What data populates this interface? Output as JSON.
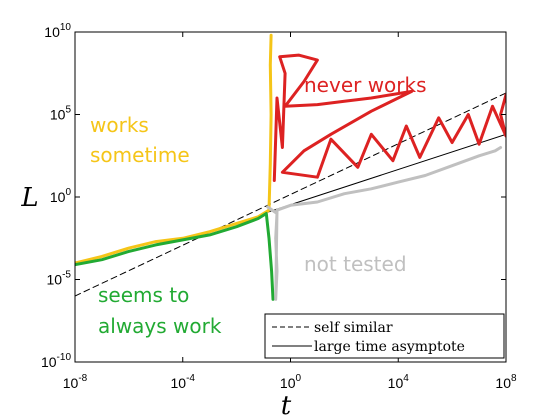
{
  "chart_data": {
    "type": "line",
    "title": "",
    "xlabel": "t",
    "ylabel": "L",
    "xscale": "log",
    "yscale": "log",
    "xlim_exp": [
      -8,
      8
    ],
    "ylim_exp": [
      -10,
      10
    ],
    "x_ticks": [
      {
        "base": "10",
        "exp": "-8",
        "value": -8
      },
      {
        "base": "10",
        "exp": "-4",
        "value": -4
      },
      {
        "base": "10",
        "exp": "0",
        "value": 0
      },
      {
        "base": "10",
        "exp": "4",
        "value": 4
      },
      {
        "base": "10",
        "exp": "8",
        "value": 8
      }
    ],
    "y_ticks": [
      {
        "base": "10",
        "exp": "-10",
        "value": -10
      },
      {
        "base": "10",
        "exp": "-5",
        "value": -5
      },
      {
        "base": "10",
        "exp": "0",
        "value": 0
      },
      {
        "base": "10",
        "exp": "5",
        "value": 5
      },
      {
        "base": "10",
        "exp": "10",
        "value": 10
      }
    ],
    "series": [
      {
        "name": "self similar",
        "style": "dashed",
        "color": "#000000",
        "points": [
          [
            -8,
            -6.0
          ],
          [
            8,
            6.3
          ]
        ]
      },
      {
        "name": "large time asymptote",
        "style": "solid",
        "color": "#000000",
        "points": [
          [
            -1.0,
            -1.0
          ],
          [
            8,
            3.8
          ]
        ]
      },
      {
        "name": "works sometime",
        "style": "hand",
        "color": "#f5c518",
        "points": [
          [
            -8,
            -4.0
          ],
          [
            -7,
            -3.6
          ],
          [
            -6,
            -3.1
          ],
          [
            -5,
            -2.7
          ],
          [
            -4,
            -2.5
          ],
          [
            -3,
            -2.1
          ],
          [
            -2,
            -1.6
          ],
          [
            -1.2,
            -1.2
          ],
          [
            -0.8,
            -0.8
          ],
          [
            -0.75,
            2.0
          ],
          [
            -0.72,
            5.0
          ],
          [
            -0.75,
            8.0
          ],
          [
            -0.72,
            9.8
          ]
        ]
      },
      {
        "name": "seems to always work",
        "style": "hand",
        "color": "#22aa33",
        "points": [
          [
            -8,
            -4.1
          ],
          [
            -7,
            -3.8
          ],
          [
            -6,
            -3.3
          ],
          [
            -5,
            -2.9
          ],
          [
            -4,
            -2.6
          ],
          [
            -3,
            -2.3
          ],
          [
            -2,
            -1.8
          ],
          [
            -1.2,
            -1.3
          ],
          [
            -0.9,
            -1.0
          ],
          [
            -0.8,
            -2.5
          ],
          [
            -0.7,
            -4.5
          ],
          [
            -0.65,
            -6.2
          ]
        ]
      },
      {
        "name": "not tested",
        "style": "hand",
        "color": "#c0c0c0",
        "points": [
          [
            -0.85,
            -0.6
          ],
          [
            -0.5,
            -1.0
          ],
          [
            -0.55,
            -2.5
          ],
          [
            -0.5,
            -4.5
          ],
          [
            -0.55,
            -6.2
          ],
          [
            -0.5,
            -0.8
          ],
          [
            0,
            -0.5
          ],
          [
            1,
            -0.3
          ],
          [
            2,
            0.2
          ],
          [
            3,
            0.5
          ],
          [
            4,
            0.9
          ],
          [
            5,
            1.3
          ],
          [
            6,
            1.9
          ],
          [
            7,
            2.5
          ],
          [
            7.6,
            2.8
          ],
          [
            7.8,
            3.0
          ]
        ]
      },
      {
        "name": "never works",
        "style": "hand",
        "color": "#dd2222",
        "points": [
          [
            -0.6,
            1.0
          ],
          [
            -0.5,
            6.0
          ],
          [
            -0.3,
            3.0
          ],
          [
            -0.2,
            7.5
          ],
          [
            -0.4,
            8.5
          ],
          [
            0.3,
            8.6
          ],
          [
            1.0,
            8.3
          ],
          [
            0.5,
            7.0
          ],
          [
            -0.2,
            5.5
          ],
          [
            1.0,
            5.6
          ],
          [
            2.0,
            5.8
          ],
          [
            3.0,
            6.0
          ],
          [
            4.5,
            6.4
          ],
          [
            3.0,
            5.2
          ],
          [
            1.5,
            3.8
          ],
          [
            0.5,
            2.8
          ],
          [
            -0.3,
            1.5
          ],
          [
            1.0,
            1.2
          ],
          [
            1.5,
            3.5
          ],
          [
            2.5,
            1.8
          ],
          [
            3.0,
            3.8
          ],
          [
            3.8,
            2.2
          ],
          [
            4.3,
            4.3
          ],
          [
            4.8,
            2.4
          ],
          [
            5.5,
            4.8
          ],
          [
            6.0,
            3.3
          ],
          [
            6.6,
            5.0
          ],
          [
            7.0,
            3.2
          ],
          [
            7.5,
            5.5
          ],
          [
            8,
            3.7
          ],
          [
            7.8,
            5.0
          ],
          [
            8,
            6.2
          ]
        ]
      }
    ],
    "annotations": [
      {
        "id": "works_sometime",
        "lines": [
          "works",
          "sometime"
        ],
        "color": "#f5c518"
      },
      {
        "id": "never_works",
        "lines": [
          "never works"
        ],
        "color": "#dd2222"
      },
      {
        "id": "not_tested",
        "lines": [
          "not tested"
        ],
        "color": "#c0c0c0"
      },
      {
        "id": "seems_to_work",
        "lines": [
          "seems to",
          "always work"
        ],
        "color": "#22aa33"
      }
    ],
    "legend": {
      "placement": "bottom-right",
      "entries": [
        {
          "label": "self similar",
          "style": "dashed"
        },
        {
          "label": "large time asymptote",
          "style": "solid"
        }
      ]
    }
  }
}
